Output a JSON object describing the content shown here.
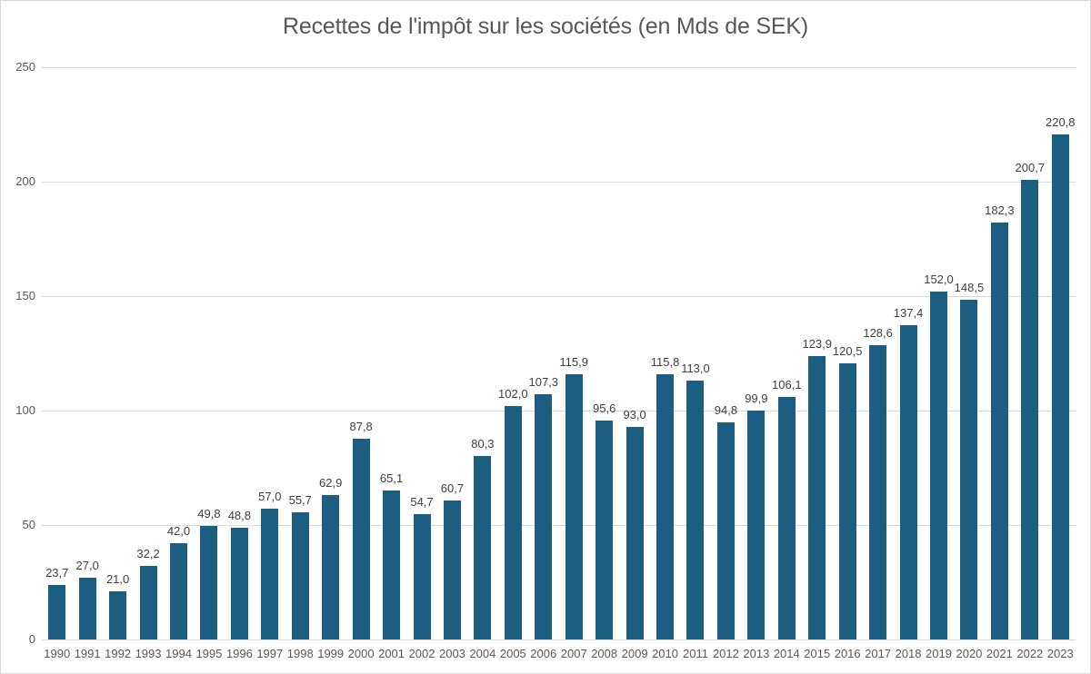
{
  "chart_data": {
    "type": "bar",
    "title": "Recettes de l'impôt sur les sociétés (en Mds de SEK)",
    "xlabel": "",
    "ylabel": "",
    "categories": [
      "1990",
      "1991",
      "1992",
      "1993",
      "1994",
      "1995",
      "1996",
      "1997",
      "1998",
      "1999",
      "2000",
      "2001",
      "2002",
      "2003",
      "2004",
      "2005",
      "2006",
      "2007",
      "2008",
      "2009",
      "2010",
      "2011",
      "2012",
      "2013",
      "2014",
      "2015",
      "2016",
      "2017",
      "2018",
      "2019",
      "2020",
      "2021",
      "2022",
      "2023"
    ],
    "values": [
      23.7,
      27.0,
      21.0,
      32.2,
      42.0,
      49.8,
      48.8,
      57.0,
      55.7,
      62.9,
      87.8,
      65.1,
      54.7,
      60.7,
      80.3,
      102.0,
      107.3,
      115.9,
      95.6,
      93.0,
      115.8,
      113.0,
      94.8,
      99.9,
      106.1,
      123.9,
      120.5,
      128.6,
      137.4,
      152.0,
      148.5,
      182.3,
      200.7,
      220.8
    ],
    "value_labels": [
      "23,7",
      "27,0",
      "21,0",
      "32,2",
      "42,0",
      "49,8",
      "48,8",
      "57,0",
      "55,7",
      "62,9",
      "87,8",
      "65,1",
      "54,7",
      "60,7",
      "80,3",
      "102,0",
      "107,3",
      "115,9",
      "95,6",
      "93,0",
      "115,8",
      "113,0",
      "94,8",
      "99,9",
      "106,1",
      "123,9",
      "120,5",
      "128,6",
      "137,4",
      "152,0",
      "148,5",
      "182,3",
      "200,7",
      "220,8"
    ],
    "ylim": [
      0,
      250
    ],
    "yticks": [
      0,
      50,
      100,
      150,
      200,
      250
    ],
    "grid": true,
    "legend": false,
    "decimal_separator": ",",
    "colors": {
      "bar": "#1B5E82",
      "gridline": "#D9D9D9",
      "axis_line": "#D9D9D9",
      "title_text": "#575757",
      "tick_text": "#595959",
      "value_label_text": "#404040",
      "background": "#FFFFFF",
      "border": "#D6D6D6"
    }
  }
}
